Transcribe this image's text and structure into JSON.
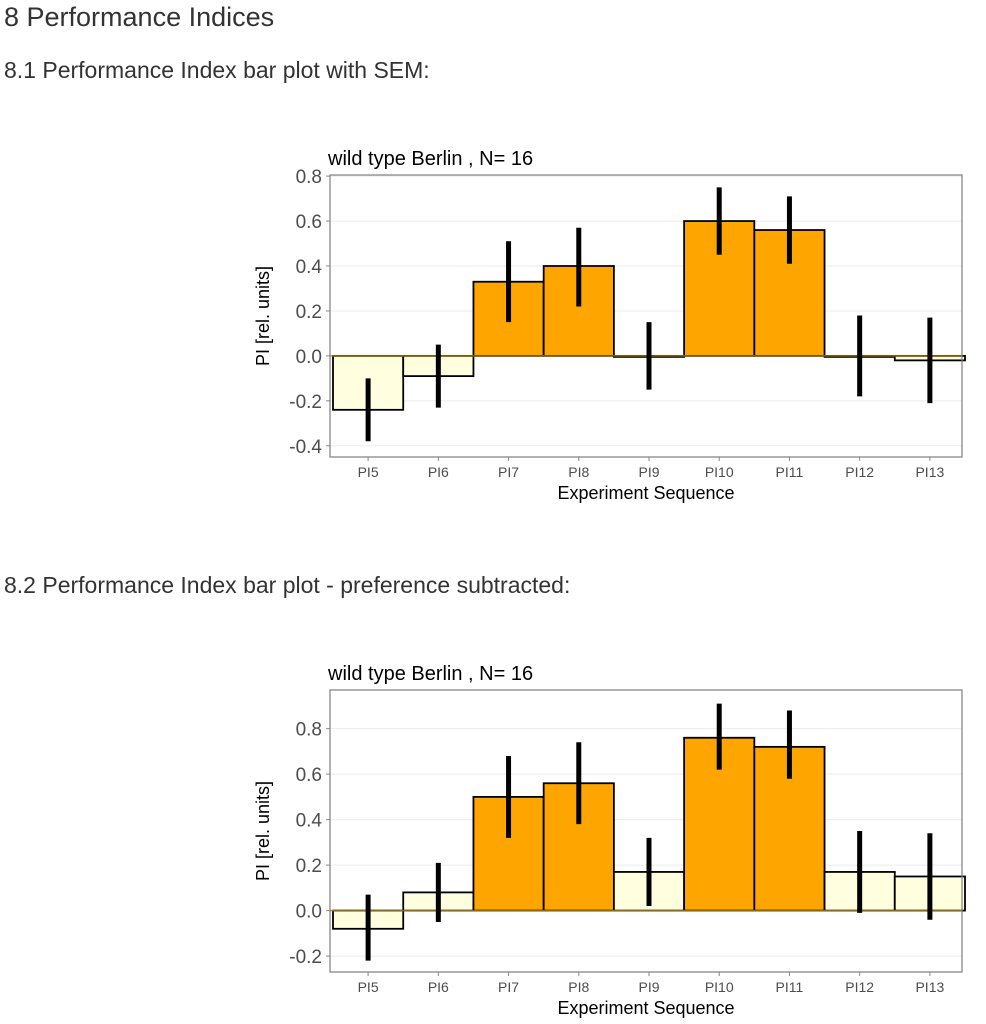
{
  "headings": {
    "section": "8 Performance Indices",
    "sub1": "8.1 Performance Index bar plot with SEM:",
    "sub2": "8.2 Performance Index bar plot - preference subtracted:"
  },
  "colors": {
    "high": "#FFA500",
    "low": "#FFFFE0",
    "zero_line": "#B8860B",
    "grid": "#EBEBEB"
  },
  "chart_data": [
    {
      "type": "bar",
      "title": "wild type Berlin , N= 16",
      "xlabel": "Experiment Sequence",
      "ylabel": "PI [rel. units]",
      "ylim": [
        -0.45,
        0.805
      ],
      "yticks": [
        "0.8",
        "0.6",
        "0.4",
        "0.2",
        "0.0",
        "-0.2",
        "-0.4"
      ],
      "categories": [
        "PI5",
        "PI6",
        "PI7",
        "PI8",
        "PI9",
        "PI10",
        "PI11",
        "PI12",
        "PI13"
      ],
      "values": [
        -0.24,
        -0.09,
        0.33,
        0.4,
        0.0,
        0.6,
        0.56,
        0.0,
        -0.02
      ],
      "error_low": [
        -0.38,
        -0.23,
        0.15,
        0.22,
        -0.15,
        0.45,
        0.41,
        -0.18,
        -0.21
      ],
      "error_high": [
        -0.1,
        0.05,
        0.51,
        0.57,
        0.15,
        0.75,
        0.71,
        0.18,
        0.17
      ],
      "highlight": [
        false,
        false,
        true,
        true,
        false,
        true,
        true,
        false,
        false
      ],
      "grid": true
    },
    {
      "type": "bar",
      "title": "wild type Berlin , N= 16",
      "xlabel": "Experiment Sequence",
      "ylabel": "PI [rel. units]",
      "ylim": [
        -0.27,
        0.97
      ],
      "yticks": [
        "0.8",
        "0.6",
        "0.4",
        "0.2",
        "0.0",
        "-0.2"
      ],
      "categories": [
        "PI5",
        "PI6",
        "PI7",
        "PI8",
        "PI9",
        "PI10",
        "PI11",
        "PI12",
        "PI13"
      ],
      "values": [
        -0.08,
        0.08,
        0.5,
        0.56,
        0.17,
        0.76,
        0.72,
        0.17,
        0.15
      ],
      "error_low": [
        -0.22,
        -0.05,
        0.32,
        0.38,
        0.02,
        0.62,
        0.58,
        -0.01,
        -0.04
      ],
      "error_high": [
        0.07,
        0.21,
        0.68,
        0.74,
        0.32,
        0.91,
        0.88,
        0.35,
        0.34
      ],
      "highlight": [
        false,
        false,
        true,
        true,
        false,
        true,
        true,
        false,
        false
      ],
      "grid": true
    }
  ]
}
